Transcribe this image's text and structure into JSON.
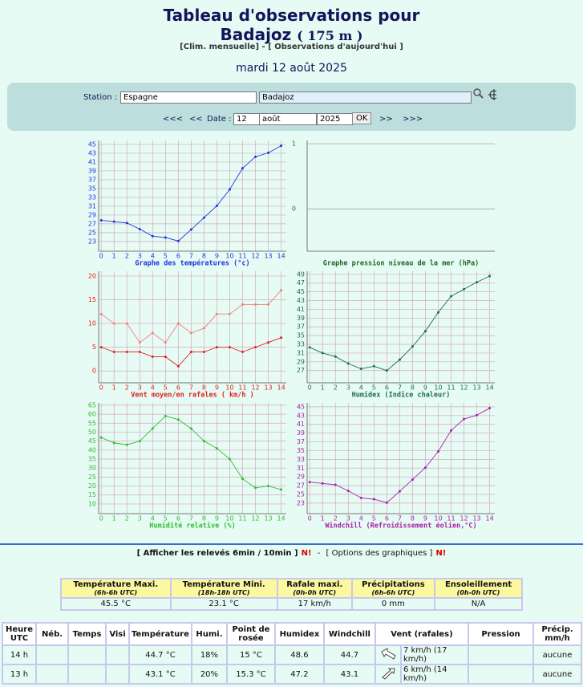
{
  "header": {
    "title": "Tableau d'observations pour",
    "station": "Badajoz",
    "altitude": "( 175 m )",
    "nav": [
      "[Clim. mensuelle]",
      "-",
      "[ Observations d'aujourd'hui ]"
    ],
    "date": "mardi 12 août 2025"
  },
  "form": {
    "station_label": "Station :",
    "country": "Espagne",
    "city": "Badajoz",
    "prev2": "<<<",
    "prev1": "<<",
    "date_label": "Date :",
    "day": "12",
    "month": "août",
    "year": "2025",
    "ok": "OK",
    "next1": ">>",
    "next2": ">>>"
  },
  "chart_data": [
    {
      "type": "line",
      "title": "Graphe des températures (°c)",
      "axis_color": "#2233dd",
      "x": [
        0,
        1,
        2,
        3,
        4,
        5,
        6,
        7,
        8,
        9,
        10,
        11,
        12,
        13,
        14
      ],
      "xticks": [
        0,
        1,
        2,
        3,
        4,
        5,
        6,
        7,
        8,
        9,
        10,
        11,
        12,
        13,
        14
      ],
      "xlim": [
        -0.2,
        14.4
      ],
      "ylim": [
        20.8,
        45.9
      ],
      "yticks": [
        23,
        25,
        27,
        29,
        31,
        33,
        35,
        37,
        39,
        41,
        43,
        45
      ],
      "grid": true,
      "series": [
        {
          "color": "#2233dd",
          "values": [
            27.8,
            27.5,
            27.2,
            25.8,
            24.2,
            23.9,
            23.1,
            25.7,
            28.4,
            31.1,
            34.8,
            39.6,
            42.2,
            43.1,
            44.7
          ]
        }
      ]
    },
    {
      "type": "line",
      "title": "Graphe pression niveau de la mer (hPa)",
      "axis_color": "#226622",
      "xlim": [
        -0.2,
        14.4
      ],
      "ylim": [
        -0.65,
        1.05
      ],
      "yticks": [
        0,
        1
      ],
      "grid": false,
      "series": []
    },
    {
      "type": "line",
      "title": "Vent moyen/en rafales ( km/h )",
      "axis_color": "#e02020",
      "x": [
        0,
        1,
        2,
        3,
        4,
        5,
        6,
        7,
        8,
        9,
        10,
        11,
        12,
        13,
        14
      ],
      "xticks": [
        0,
        1,
        2,
        3,
        4,
        5,
        6,
        7,
        8,
        9,
        10,
        11,
        12,
        13,
        14
      ],
      "xlim": [
        -0.2,
        14.4
      ],
      "ylim": [
        -2.5,
        21
      ],
      "yticks": [
        0,
        5,
        10,
        15,
        20
      ],
      "grid": true,
      "series": [
        {
          "color": "#f08080",
          "values": [
            12,
            10,
            10,
            6,
            8,
            6,
            10,
            8,
            9,
            12,
            12,
            14,
            14,
            14,
            17
          ]
        },
        {
          "color": "#e02020",
          "values": [
            5,
            4,
            4,
            4,
            3,
            3,
            1,
            4,
            4,
            5,
            5,
            4,
            5,
            6,
            7
          ]
        }
      ]
    },
    {
      "type": "line",
      "title": "Humidex (Indice chaleur)",
      "axis_color": "#206a5a",
      "x": [
        0,
        1,
        2,
        3,
        4,
        5,
        6,
        7,
        8,
        9,
        10,
        11,
        12,
        13,
        14
      ],
      "xticks": [
        0,
        1,
        2,
        3,
        4,
        5,
        6,
        7,
        8,
        9,
        10,
        11,
        12,
        13,
        14
      ],
      "xlim": [
        -0.2,
        14.4
      ],
      "ylim": [
        24.2,
        49.7
      ],
      "yticks": [
        27,
        29,
        31,
        33,
        35,
        37,
        39,
        41,
        43,
        45,
        47,
        49
      ],
      "grid": true,
      "series": [
        {
          "color": "#206a5a",
          "values": [
            32.3,
            31,
            30.2,
            28.6,
            27.4,
            28,
            27,
            29.5,
            32.5,
            36,
            40.3,
            44,
            45.6,
            47.2,
            48.6
          ]
        }
      ]
    },
    {
      "type": "line",
      "title": "Humidité relative (%)",
      "axis_color": "#33bb33",
      "x": [
        0,
        1,
        2,
        3,
        4,
        5,
        6,
        7,
        8,
        9,
        10,
        11,
        12,
        13,
        14
      ],
      "xticks": [
        0,
        1,
        2,
        3,
        4,
        5,
        6,
        7,
        8,
        9,
        10,
        11,
        12,
        13,
        14
      ],
      "xlim": [
        -0.2,
        14.4
      ],
      "ylim": [
        4.6,
        66.3
      ],
      "yticks": [
        10,
        15,
        20,
        25,
        30,
        35,
        40,
        45,
        50,
        55,
        60,
        65
      ],
      "grid": true,
      "series": [
        {
          "color": "#33bb33",
          "values": [
            47,
            44,
            43,
            45,
            52,
            59,
            57,
            52,
            45,
            41,
            35,
            24,
            19,
            20,
            18
          ]
        }
      ]
    },
    {
      "type": "line",
      "title": "Windchill (Refroidissement éolien,°C)",
      "axis_color": "#aa22aa",
      "x": [
        0,
        1,
        2,
        3,
        4,
        5,
        6,
        7,
        8,
        9,
        10,
        11,
        12,
        13,
        14
      ],
      "xticks": [
        0,
        1,
        2,
        3,
        4,
        5,
        6,
        7,
        8,
        9,
        10,
        11,
        12,
        13,
        14
      ],
      "xlim": [
        -0.2,
        14.4
      ],
      "ylim": [
        20.6,
        45.9
      ],
      "yticks": [
        23,
        25,
        27,
        29,
        31,
        33,
        35,
        37,
        39,
        41,
        43,
        45
      ],
      "grid": true,
      "series": [
        {
          "color": "#aa22aa",
          "values": [
            27.8,
            27.5,
            27.2,
            25.8,
            24.2,
            23.9,
            23.1,
            25.7,
            28.4,
            31.1,
            34.8,
            39.6,
            42.2,
            43.1,
            44.7
          ]
        }
      ]
    }
  ],
  "options": [
    "[ Afficher les relevés 6min / 10min ]",
    "N!",
    "-",
    "[ Options des graphiques ]",
    "N!"
  ],
  "summary": {
    "columns": [
      {
        "title": "Température Maxi.",
        "sub": "(6h-6h UTC)",
        "value": "45.5 °C"
      },
      {
        "title": "Température Mini.",
        "sub": "(18h-18h UTC)",
        "value": "23.1 °C"
      },
      {
        "title": "Rafale maxi.",
        "sub": "(0h-0h UTC)",
        "value": "17 km/h"
      },
      {
        "title": "Précipitations",
        "sub": "(6h-6h UTC)",
        "value": "0 mm"
      },
      {
        "title": "Ensoleillement",
        "sub": "(0h-0h UTC)",
        "value": "N/A"
      }
    ]
  },
  "table": {
    "headers": {
      "heure": "Heure UTC",
      "neb": "Néb.",
      "temps": "Temps",
      "visi": "Visi",
      "temp": "Température",
      "humi": "Humi.",
      "rosee": "Point de rosée",
      "humidex": "Humidex",
      "windchill": "Windchill",
      "vent": "Vent (rafales)",
      "pression": "Pression",
      "precip": "Précip. mm/h"
    },
    "rows": [
      {
        "heure": "14 h",
        "temp": "44.7 °C",
        "humi": "18%",
        "rosee": "15 °C",
        "humidex": "48.6",
        "windchill": "44.7",
        "vent": "7 km/h (17 km/h)",
        "precip": "aucune"
      },
      {
        "heure": "13 h",
        "temp": "43.1 °C",
        "humi": "20%",
        "rosee": "15.3 °C",
        "humidex": "47.2",
        "windchill": "43.1",
        "vent": "6 km/h (14 km/h)",
        "precip": "aucune"
      }
    ]
  }
}
